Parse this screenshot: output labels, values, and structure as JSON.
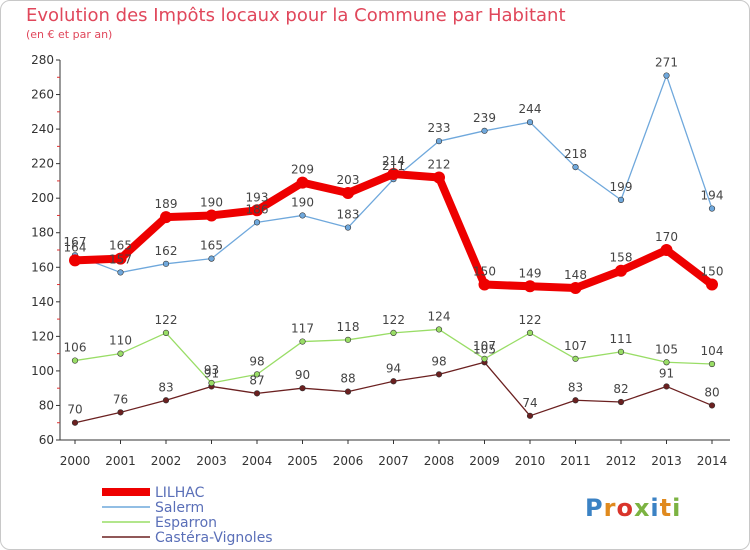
{
  "title": "Evolution des Impôts locaux pour la Commune par Habitant",
  "subtitle": "(en € et par an)",
  "logo_text": "Proxiti",
  "chart_data": {
    "type": "line",
    "title": "Evolution des Impôts locaux pour la Commune par Habitant",
    "subtitle": "(en € et par an)",
    "xlabel": "",
    "ylabel": "",
    "x": [
      "2000",
      "2001",
      "2002",
      "2003",
      "2004",
      "2005",
      "2006",
      "2007",
      "2008",
      "2009",
      "2010",
      "2011",
      "2012",
      "2013",
      "2014"
    ],
    "ylim": [
      60,
      280
    ],
    "yticks": [
      60,
      80,
      100,
      120,
      140,
      160,
      180,
      200,
      220,
      240,
      260,
      280
    ],
    "grid": false,
    "legend": "bottom-left",
    "series": [
      {
        "name": "LILHAC",
        "color": "#ee0000",
        "values": [
          164,
          165,
          189,
          190,
          193,
          209,
          203,
          214,
          212,
          150,
          149,
          148,
          158,
          170,
          150
        ]
      },
      {
        "name": "Salerm",
        "color": "#6fa8dc",
        "values": [
          167,
          157,
          162,
          165,
          186,
          190,
          183,
          211,
          233,
          239,
          244,
          218,
          199,
          271,
          194
        ]
      },
      {
        "name": "Esparron",
        "color": "#99dd66",
        "values": [
          106,
          110,
          122,
          93,
          98,
          117,
          118,
          122,
          124,
          107,
          122,
          107,
          111,
          105,
          104
        ]
      },
      {
        "name": "Castéra-Vignoles",
        "color": "#6b2020",
        "values": [
          70,
          76,
          83,
          91,
          87,
          90,
          88,
          94,
          98,
          105,
          74,
          83,
          82,
          91,
          80
        ]
      }
    ],
    "data_labels": {
      "LILHAC": [
        "164",
        "165",
        "189",
        "190",
        "193",
        "209",
        "203",
        "214",
        "212",
        "150",
        "149",
        "148",
        "158",
        "170",
        "150"
      ],
      "Salerm": [
        "167",
        "157",
        "162",
        "165",
        "186",
        "190",
        "183",
        "211",
        "233",
        "239",
        "244",
        "218",
        "199",
        "271",
        "194"
      ],
      "Esparron": [
        "106",
        "110",
        "122",
        "93",
        "98",
        "117",
        "118",
        "122",
        "124",
        "107",
        "122",
        "107",
        "111",
        "105",
        "104"
      ],
      "Castéra-Vignoles": [
        "70",
        "76",
        "83",
        "91",
        "87",
        "90",
        "88",
        "94",
        "98",
        "105",
        "74",
        "83",
        "82",
        "91",
        "80"
      ]
    }
  }
}
